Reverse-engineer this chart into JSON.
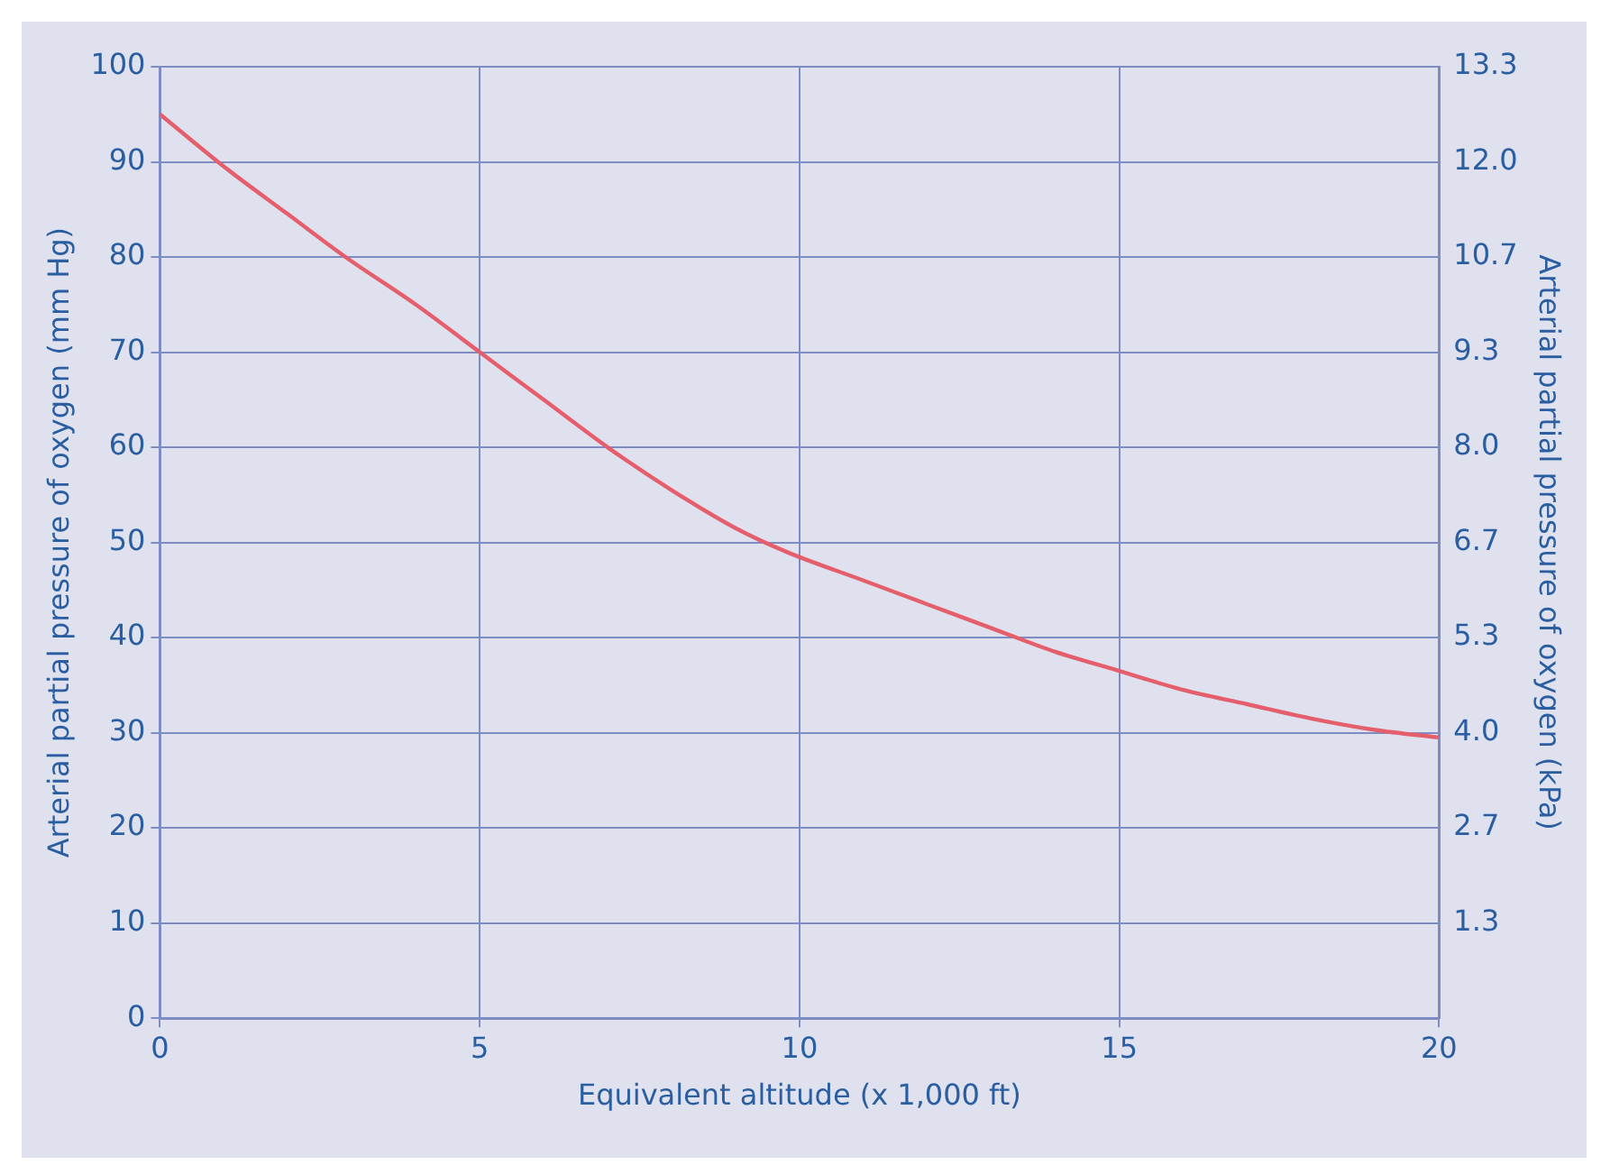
{
  "chart_data": {
    "type": "line",
    "xlabel": "Equivalent altitude (x 1,000 ft)",
    "ylabel": "Arterial partial pressure of oxygen (mm Hg)",
    "y2label": "Arterial partial pressure of oxygen (kPa)",
    "x": [
      0,
      1,
      2,
      2.9,
      4,
      5,
      6,
      7,
      8,
      9,
      9.8,
      11,
      12,
      13,
      14,
      15,
      16,
      17,
      18,
      19,
      20
    ],
    "series": [
      {
        "color": "#e45f6b",
        "values": [
          95,
          89.5,
          84.5,
          80,
          75,
          70,
          65,
          60,
          55.5,
          51.5,
          49,
          46,
          43.5,
          41,
          38.5,
          36.5,
          34.5,
          33,
          31.5,
          30.3,
          29.5
        ]
      }
    ],
    "xlim": [
      0,
      20
    ],
    "xticks": [
      0,
      5,
      10,
      15,
      20
    ],
    "ylim": [
      0,
      100
    ],
    "yticks": [
      0,
      10,
      20,
      30,
      40,
      50,
      60,
      70,
      80,
      90,
      100
    ],
    "y2lim": [
      0,
      13.33
    ],
    "y2ticks": [
      {
        "value": 1.333,
        "label": "1.3"
      },
      {
        "value": 2.667,
        "label": "2.7"
      },
      {
        "value": 4,
        "label": "4.0"
      },
      {
        "value": 5.333,
        "label": "5.3"
      },
      {
        "value": 6.667,
        "label": "6.7"
      },
      {
        "value": 8,
        "label": "8.0"
      },
      {
        "value": 9.333,
        "label": "9.3"
      },
      {
        "value": 10.667,
        "label": "10.7"
      },
      {
        "value": 12,
        "label": "12.0"
      },
      {
        "value": 13.33,
        "label": "13.3"
      }
    ],
    "grid": true,
    "legend": false,
    "marker": "none",
    "line_style": "solid"
  }
}
